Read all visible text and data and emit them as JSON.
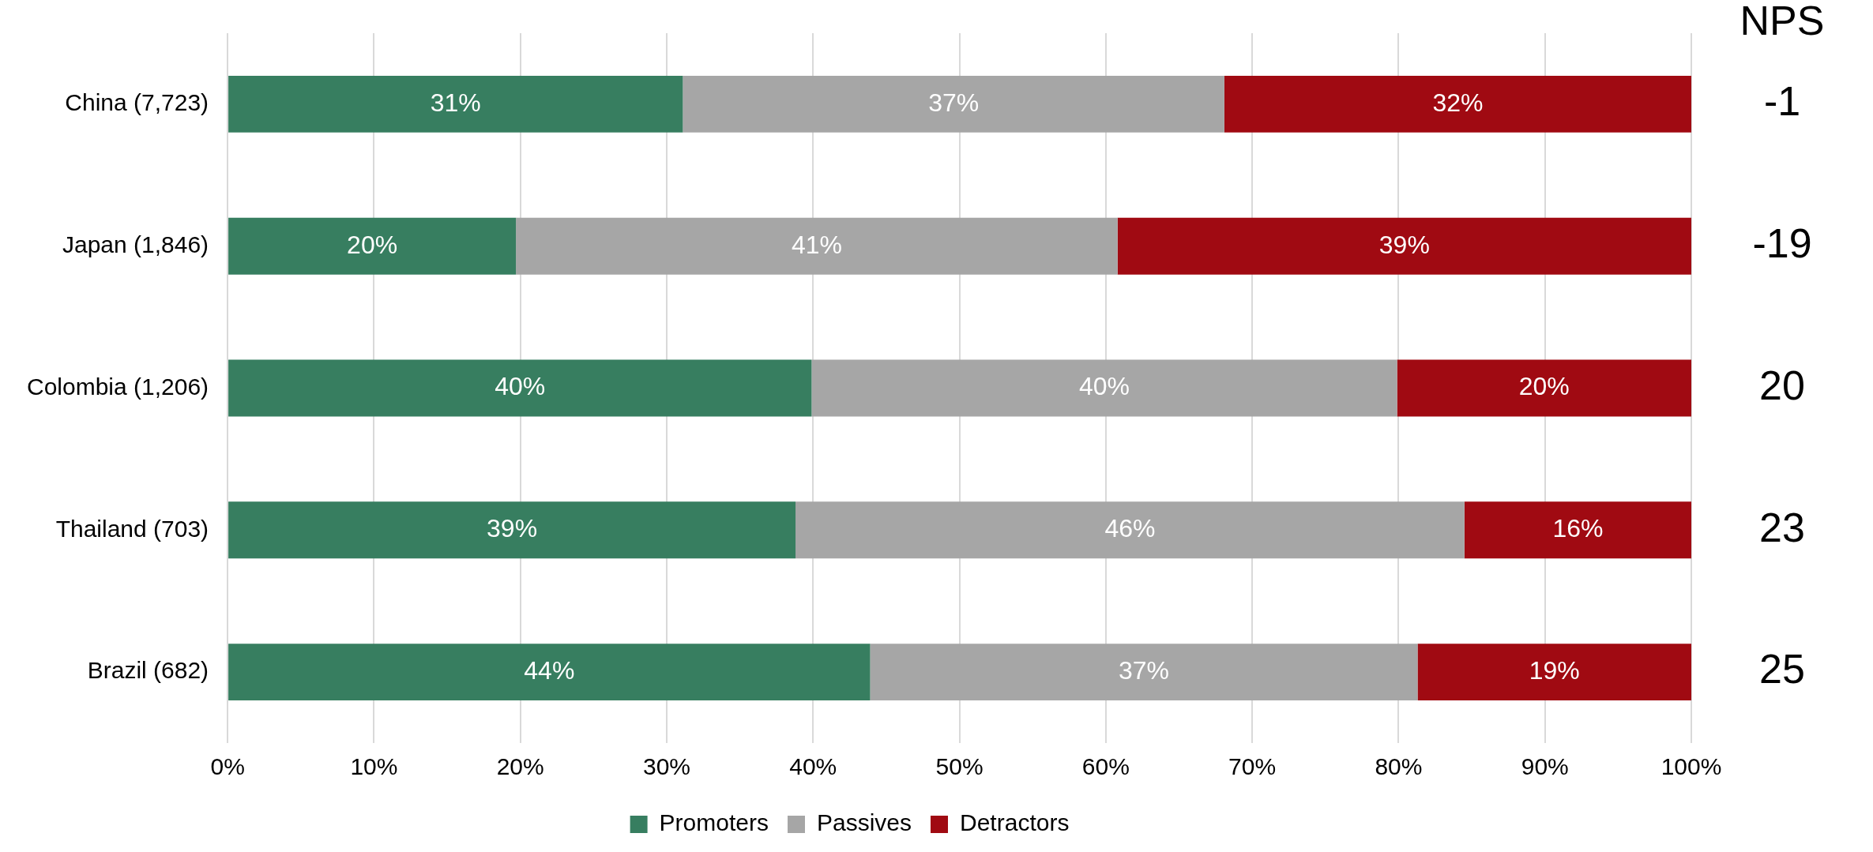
{
  "chart_data": {
    "type": "bar",
    "orientation": "horizontal",
    "stacked": true,
    "categories": [
      "China (7,723)",
      "Japan (1,846)",
      "Colombia (1,206)",
      "Thailand (703)",
      "Brazil (682)"
    ],
    "series": [
      {
        "name": "Promoters",
        "color": "#377e60",
        "values": [
          31.1,
          19.7,
          39.9,
          38.8,
          43.9
        ],
        "value_labels": [
          "31%",
          "20%",
          "40%",
          "39%",
          "44%"
        ]
      },
      {
        "name": "Passives",
        "color": "#a6a6a6",
        "values": [
          37.0,
          41.1,
          40.0,
          45.7,
          37.4
        ],
        "value_labels": [
          "37%",
          "41%",
          "40%",
          "46%",
          "37%"
        ]
      },
      {
        "name": "Detractors",
        "color": "#a00a12",
        "values": [
          31.9,
          39.2,
          20.1,
          15.5,
          18.7
        ],
        "value_labels": [
          "32%",
          "39%",
          "20%",
          "16%",
          "19%"
        ]
      }
    ],
    "xlim": [
      0,
      100
    ],
    "xticks": [
      {
        "value": 0,
        "label": "0%"
      },
      {
        "value": 10,
        "label": "10%"
      },
      {
        "value": 20,
        "label": "20%"
      },
      {
        "value": 30,
        "label": "30%"
      },
      {
        "value": 40,
        "label": "40%"
      },
      {
        "value": 50,
        "label": "50%"
      },
      {
        "value": 60,
        "label": "60%"
      },
      {
        "value": 70,
        "label": "70%"
      },
      {
        "value": 80,
        "label": "80%"
      },
      {
        "value": 90,
        "label": "90%"
      },
      {
        "value": 100,
        "label": "100%"
      }
    ],
    "grid": "x",
    "legend": "bottom",
    "annotations": [
      "NPS",
      "-1",
      "-19",
      "20",
      "23",
      "25"
    ]
  }
}
